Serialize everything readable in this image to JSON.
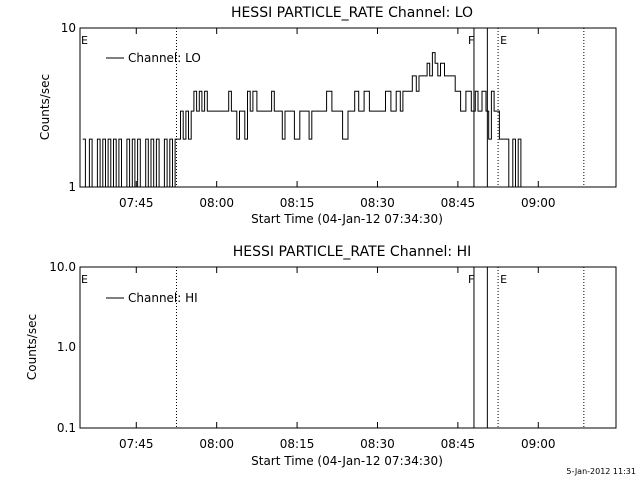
{
  "footer": {
    "date": "5-Jan-2012 11:31"
  },
  "chart_data": [
    {
      "type": "line",
      "title": "HESSI PARTICLE_RATE Channel: LO",
      "xlabel": "Start Time (04-Jan-12 07:34:30)",
      "ylabel": "Counts/sec",
      "yscale": "log",
      "xlim": [
        "07:34:30",
        "09:14:30"
      ],
      "ylim": [
        1,
        10
      ],
      "y_tick_labels": [
        "1",
        "10"
      ],
      "x_tick_labels": [
        "07:45",
        "08:00",
        "08:15",
        "08:30",
        "08:45",
        "09:00"
      ],
      "legend": {
        "label": "Channel: LO",
        "position": "top-left"
      },
      "markers": [
        {
          "label": "E",
          "time": "07:34:30",
          "style": "dotted"
        },
        {
          "label": "F",
          "time": "08:48:00",
          "style": "solid"
        },
        {
          "label": "",
          "time": "08:50:30",
          "style": "solid"
        },
        {
          "label": "E",
          "time": "08:52:30",
          "style": "dotted"
        },
        {
          "label": "",
          "time": "07:52:30",
          "style": "dotted"
        },
        {
          "label": "",
          "time": "09:08:30",
          "style": "dotted"
        }
      ],
      "series": [
        {
          "x": [
            "07:35:00",
            "07:36:00",
            "07:36:30",
            "07:37:00",
            "07:37:30",
            "07:38:00",
            "07:38:30",
            "07:39:00",
            "07:39:30",
            "07:40:00",
            "07:40:30",
            "07:41:00",
            "07:41:30",
            "07:42:00",
            "07:42:30",
            "07:43:00",
            "07:43:30",
            "07:44:00",
            "07:44:30",
            "07:45:00",
            "07:45:30",
            "07:46:00",
            "07:46:30",
            "07:47:00",
            "07:47:30",
            "07:48:00",
            "07:48:30",
            "07:49:00",
            "07:49:30",
            "07:50:00",
            "07:50:30",
            "07:51:00",
            "07:51:30",
            "07:52:00",
            "07:52:30",
            "07:53:00",
            "07:53:30",
            "07:54:00",
            "07:54:30",
            "07:55:00",
            "07:55:30",
            "07:56:00",
            "07:56:30",
            "07:57:00",
            "07:57:30",
            "07:58:00",
            "07:58:30",
            "07:59:00",
            "08:00:00",
            "08:01:00",
            "08:02:00",
            "08:02:30",
            "08:03:00",
            "08:03:30",
            "08:04:00",
            "08:04:30",
            "08:05:00",
            "08:05:30",
            "08:06:00",
            "08:06:30",
            "08:07:00",
            "08:08:00",
            "08:09:00",
            "08:10:00",
            "08:10:30",
            "08:11:00",
            "08:12:00",
            "08:12:30",
            "08:13:00",
            "08:14:00",
            "08:15:00",
            "08:16:00",
            "08:17:00",
            "08:17:30",
            "08:18:00",
            "08:19:00",
            "08:20:00",
            "08:21:00",
            "08:22:00",
            "08:23:00",
            "08:24:00",
            "08:25:00",
            "08:25:30",
            "08:26:00",
            "08:27:00",
            "08:28:00",
            "08:29:00",
            "08:30:00",
            "08:31:00",
            "08:32:00",
            "08:33:00",
            "08:34:00",
            "08:34:30",
            "08:35:00",
            "08:36:00",
            "08:37:00",
            "08:37:30",
            "08:38:00",
            "08:38:30",
            "08:39:00",
            "08:39:30",
            "08:40:00",
            "08:40:30",
            "08:41:00",
            "08:41:30",
            "08:42:00",
            "08:43:00",
            "08:44:00",
            "08:45:00",
            "08:46:00",
            "08:47:00",
            "08:48:00",
            "08:48:30",
            "08:49:00",
            "08:50:00",
            "08:50:30",
            "08:51:00",
            "08:51:30",
            "08:52:00",
            "08:52:30",
            "08:53:00",
            "08:54:00",
            "08:55:00",
            "08:55:30",
            "08:56:00",
            "08:56:30",
            "08:57:00",
            "08:58:00"
          ],
          "y": [
            2,
            1,
            2,
            1,
            1,
            2,
            1,
            2,
            1,
            2,
            1,
            2,
            1,
            2,
            1,
            1,
            2,
            1,
            2,
            1,
            2,
            1,
            1,
            2,
            1,
            2,
            1,
            2,
            1,
            1,
            2,
            1,
            2,
            1,
            2,
            2,
            3,
            2,
            3,
            2,
            3,
            4,
            3,
            4,
            3,
            4,
            3,
            3,
            3,
            3,
            3,
            4,
            3,
            3,
            2,
            3,
            3,
            2,
            4,
            3,
            4,
            3,
            3,
            3,
            4,
            3,
            3,
            2,
            3,
            3,
            2,
            3,
            3,
            2,
            3,
            3,
            3,
            4,
            3,
            3,
            2,
            3,
            3,
            4,
            3,
            4,
            3,
            3,
            3,
            4,
            3,
            4,
            3,
            4,
            4,
            5,
            4,
            5,
            5,
            5,
            6,
            5,
            7,
            6,
            5,
            6,
            5,
            5,
            4,
            3,
            4,
            3,
            4,
            3,
            4,
            3,
            2,
            4,
            3,
            3,
            2,
            2,
            1,
            2,
            1,
            2,
            1,
            1
          ],
          "name": ""
        }
      ]
    },
    {
      "type": "line",
      "title": "HESSI PARTICLE_RATE Channel: HI",
      "xlabel": "Start Time (04-Jan-12 07:34:30)",
      "ylabel": "Counts/sec",
      "yscale": "log",
      "xlim": [
        "07:34:30",
        "09:14:30"
      ],
      "ylim": [
        0.1,
        10
      ],
      "y_tick_labels": [
        "0.1",
        "1.0",
        "10.0"
      ],
      "x_tick_labels": [
        "07:45",
        "08:00",
        "08:15",
        "08:30",
        "08:45",
        "09:00"
      ],
      "legend": {
        "label": "Channel: HI",
        "position": "top-left"
      },
      "markers": [
        {
          "label": "E",
          "time": "07:34:30",
          "style": "dotted"
        },
        {
          "label": "F",
          "time": "08:48:00",
          "style": "solid"
        },
        {
          "label": "",
          "time": "08:50:30",
          "style": "solid"
        },
        {
          "label": "E",
          "time": "08:52:30",
          "style": "dotted"
        },
        {
          "label": "",
          "time": "07:52:30",
          "style": "dotted"
        },
        {
          "label": "",
          "time": "09:08:30",
          "style": "dotted"
        }
      ],
      "series": [
        {
          "name": "",
          "x": [],
          "y": []
        }
      ]
    }
  ]
}
